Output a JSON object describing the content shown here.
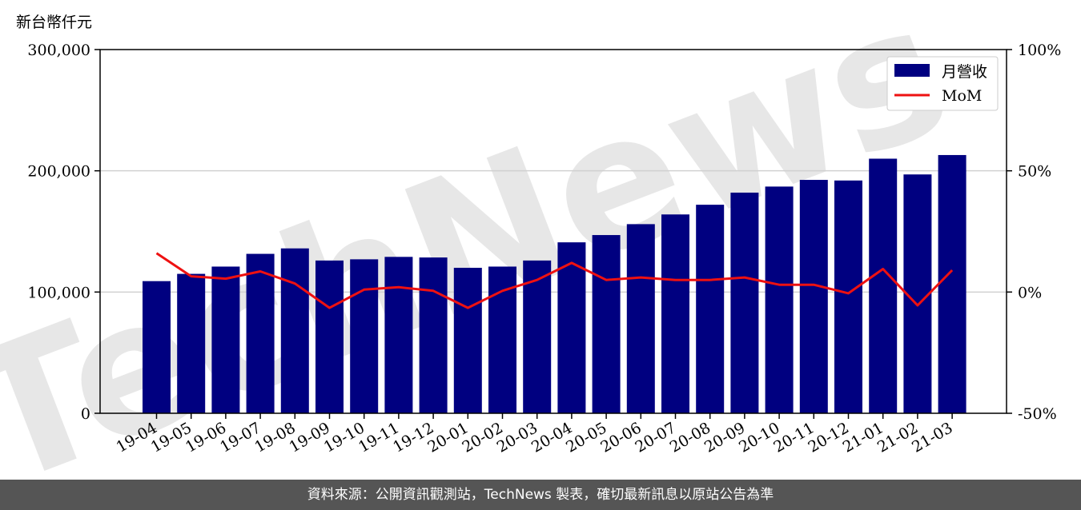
{
  "chart_data": {
    "type": "bar",
    "y_unit_label": "新台幣仟元",
    "categories": [
      "19-04",
      "19-05",
      "19-06",
      "19-07",
      "19-08",
      "19-09",
      "19-10",
      "19-11",
      "19-12",
      "20-01",
      "20-02",
      "20-03",
      "20-04",
      "20-05",
      "20-06",
      "20-07",
      "20-08",
      "20-09",
      "20-10",
      "20-11",
      "20-12",
      "21-01",
      "21-02",
      "21-03"
    ],
    "series": [
      {
        "name": "月營收",
        "type": "bar",
        "axis": "left",
        "color": "#000080",
        "values": [
          109000,
          115000,
          121000,
          131500,
          136000,
          126000,
          127000,
          129000,
          128500,
          120000,
          121000,
          126000,
          141000,
          147000,
          156000,
          164000,
          172000,
          182000,
          187000,
          192500,
          192000,
          210000,
          197000,
          213000
        ]
      },
      {
        "name": "MoM",
        "type": "line",
        "axis": "right",
        "color": "#ee1111",
        "values": [
          16,
          6.5,
          5.5,
          8.5,
          3.5,
          -6.5,
          1,
          2,
          0.5,
          -6.5,
          0.5,
          5,
          12,
          5,
          6,
          5,
          5,
          6,
          3,
          3,
          -0.5,
          9.5,
          -5.5,
          9
        ]
      }
    ],
    "y_left": {
      "min": 0,
      "max": 300000,
      "ticks": [
        "0",
        "100,000",
        "200,000",
        "300,000"
      ],
      "tick_values": [
        0,
        100000,
        200000,
        300000
      ]
    },
    "y_right": {
      "min": -50,
      "max": 100,
      "ticks": [
        "-50%",
        "0%",
        "50%",
        "100%"
      ],
      "tick_values": [
        -50,
        0,
        50,
        100
      ]
    },
    "grid": "horizontal",
    "legend_position": "top-right",
    "watermark": "TechNews"
  },
  "footer": {
    "text": "資料來源：公開資訊觀測站，TechNews 製表，確切最新訊息以原站公告為準"
  }
}
